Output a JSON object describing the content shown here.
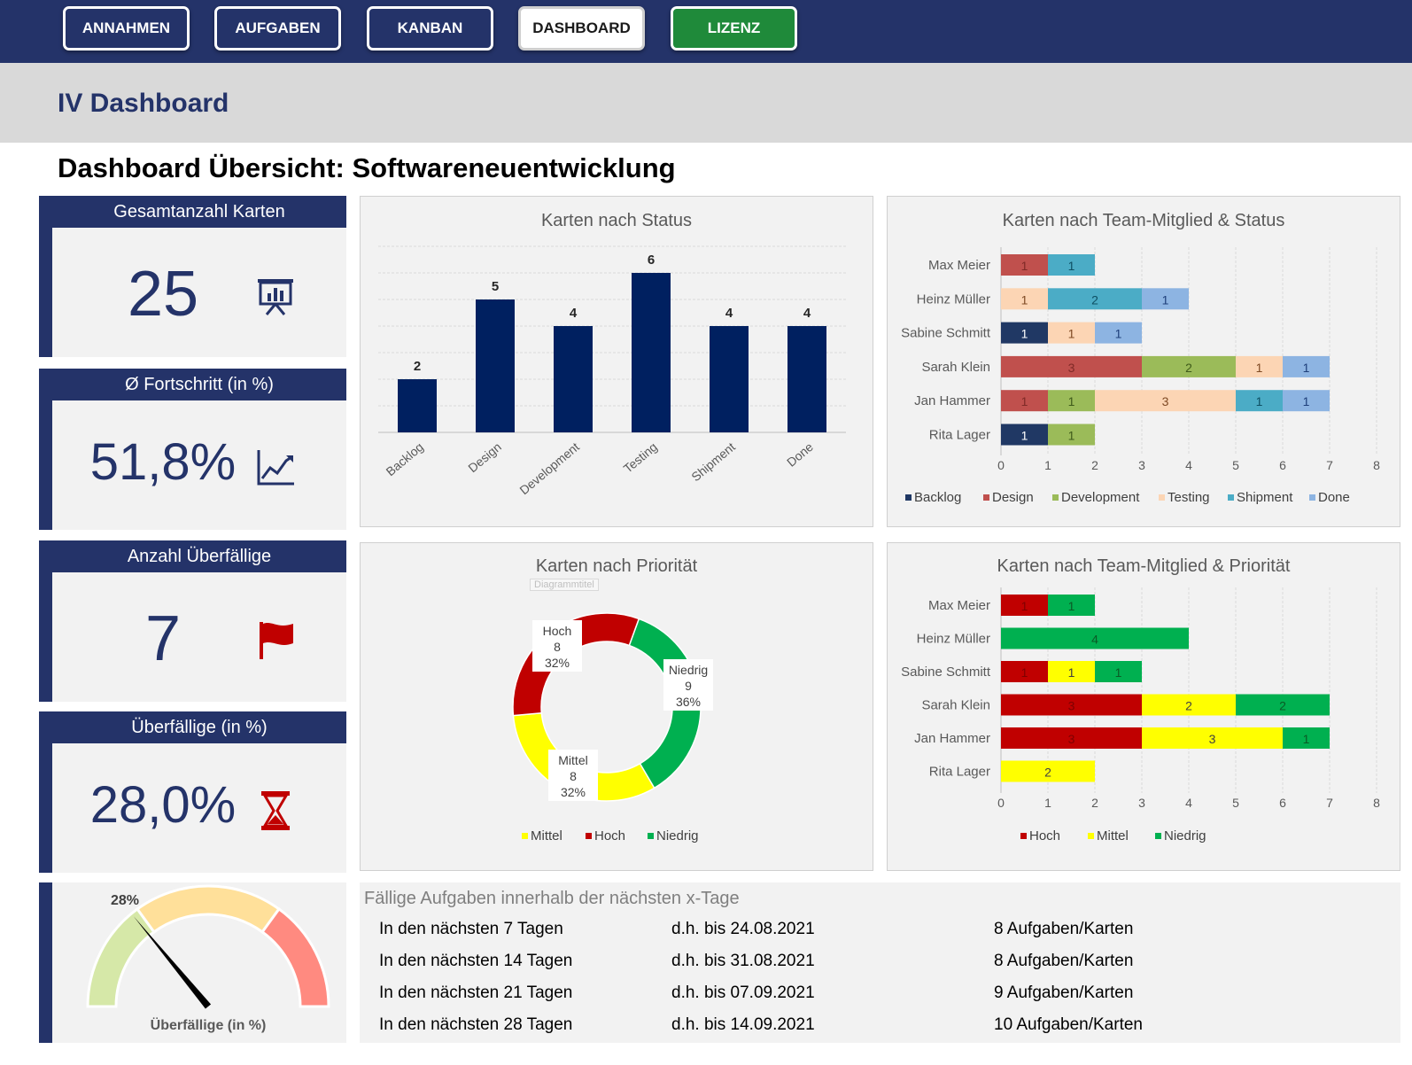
{
  "nav": {
    "annahmen": "ANNAHMEN",
    "aufgaben": "AUFGABEN",
    "kanban": "KANBAN",
    "dashboard": "DASHBOARD",
    "lizenz": "LIZENZ"
  },
  "section_title": "IV  Dashboard",
  "page_heading": "Dashboard Übersicht: Softwareneuentwicklung",
  "kpis": [
    {
      "label": "Gesamtanzahl Karten",
      "value": "25",
      "icon": "presentation-chart-icon"
    },
    {
      "label": "Ø Fortschritt (in %)",
      "value": "51,8%",
      "icon": "line-chart-icon"
    },
    {
      "label": "Anzahl Überfällige",
      "value": "7",
      "icon": "flag-icon"
    },
    {
      "label": "Überfällige (in %)",
      "value": "28,0%",
      "icon": "hourglass-icon"
    }
  ],
  "gauge": {
    "label": "Überfällige (in %)",
    "value_label": "28%",
    "value": 0.28
  },
  "colors": {
    "navy": "#243369",
    "bar_navy": "#002060",
    "backlog": "#203864",
    "design": "#c0504d",
    "development": "#9bbb59",
    "testing": "#fcd5b4",
    "shipment": "#4bacc6",
    "done": "#8db4e2",
    "hoch": "#c00000",
    "mittel": "#ffff00",
    "niedrig": "#00b050"
  },
  "chart_data": [
    {
      "type": "bar",
      "title": "Karten nach Status",
      "categories": [
        "Backlog",
        "Design",
        "Development",
        "Testing",
        "Shipment",
        "Done"
      ],
      "values": [
        2,
        5,
        4,
        6,
        4,
        4
      ],
      "ylim": [
        0,
        7
      ]
    },
    {
      "type": "bar",
      "orientation": "horizontal-stacked",
      "title": "Karten nach Team-Mitglied & Status",
      "categories": [
        "Max Meier",
        "Heinz Müller",
        "Sabine Schmitt",
        "Sarah Klein",
        "Jan Hammer",
        "Rita Lager"
      ],
      "series": [
        {
          "name": "Backlog",
          "values": [
            0,
            0,
            1,
            0,
            0,
            1
          ]
        },
        {
          "name": "Design",
          "values": [
            1,
            0,
            0,
            3,
            1,
            0
          ]
        },
        {
          "name": "Development",
          "values": [
            0,
            0,
            0,
            2,
            1,
            1
          ]
        },
        {
          "name": "Testing",
          "values": [
            0,
            1,
            1,
            1,
            3,
            0
          ]
        },
        {
          "name": "Shipment",
          "values": [
            1,
            2,
            0,
            0,
            1,
            0
          ]
        },
        {
          "name": "Done",
          "values": [
            0,
            1,
            1,
            1,
            1,
            0
          ]
        }
      ],
      "xticks": [
        "0",
        "1",
        "2",
        "3",
        "4",
        "5",
        "6",
        "7",
        "8"
      ],
      "xlim": [
        0,
        8
      ]
    },
    {
      "type": "pie",
      "style": "donut",
      "title": "Karten nach Priorität",
      "placeholder": "Diagrammtitel",
      "slices": [
        {
          "name": "Niedrig",
          "value": 9,
          "percent": "36%"
        },
        {
          "name": "Mittel",
          "value": 8,
          "percent": "32%"
        },
        {
          "name": "Hoch",
          "value": 8,
          "percent": "32%"
        }
      ],
      "legend": [
        "Mittel",
        "Hoch",
        "Niedrig"
      ]
    },
    {
      "type": "bar",
      "orientation": "horizontal-stacked",
      "title": "Karten nach Team-Mitglied & Priorität",
      "categories": [
        "Max Meier",
        "Heinz Müller",
        "Sabine Schmitt",
        "Sarah Klein",
        "Jan Hammer",
        "Rita Lager"
      ],
      "series": [
        {
          "name": "Hoch",
          "values": [
            1,
            0,
            1,
            3,
            3,
            0
          ]
        },
        {
          "name": "Mittel",
          "values": [
            0,
            0,
            1,
            2,
            3,
            2
          ]
        },
        {
          "name": "Niedrig",
          "values": [
            1,
            4,
            1,
            2,
            1,
            0
          ]
        }
      ],
      "xticks": [
        "0",
        "1",
        "2",
        "3",
        "4",
        "5",
        "6",
        "7",
        "8"
      ],
      "xlim": [
        0,
        8
      ]
    }
  ],
  "due": {
    "title": "Fällige Aufgaben innerhalb der nächsten x-Tage",
    "rows": [
      {
        "period": "In den nächsten 7 Tagen",
        "date": "d.h. bis 24.08.2021",
        "count": "8 Aufgaben/Karten"
      },
      {
        "period": "In den nächsten 14 Tagen",
        "date": "d.h. bis 31.08.2021",
        "count": "8 Aufgaben/Karten"
      },
      {
        "period": "In den nächsten 21 Tagen",
        "date": "d.h. bis 07.09.2021",
        "count": "9 Aufgaben/Karten"
      },
      {
        "period": "In den nächsten 28 Tagen",
        "date": "d.h. bis 14.09.2021",
        "count": "10 Aufgaben/Karten"
      }
    ]
  }
}
